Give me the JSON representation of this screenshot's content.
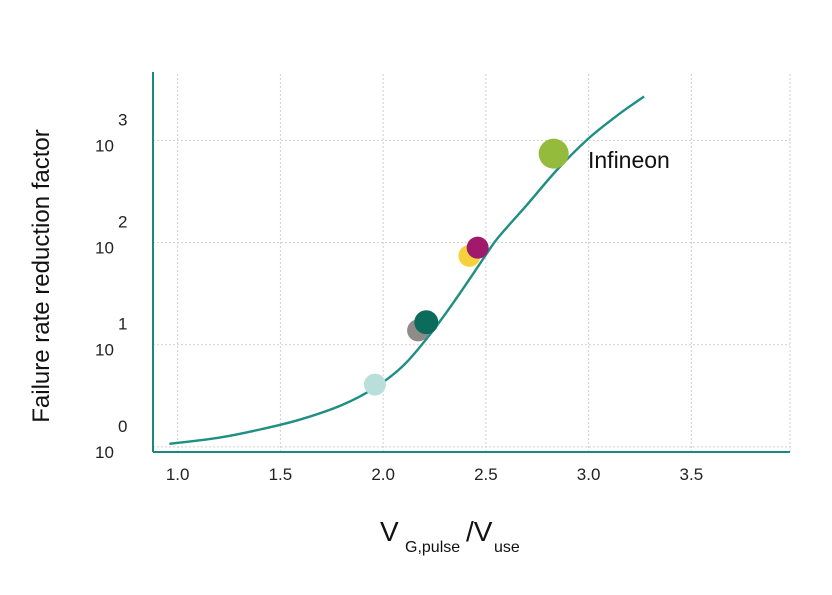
{
  "chart_data": {
    "type": "line",
    "xlabel": {
      "main": "V",
      "sub1": "G,pulse",
      "slash": "/V",
      "sub2": "use"
    },
    "ylabel": "Failure rate reduction factor",
    "xlim": [
      0.88,
      3.98
    ],
    "ylim_log10": [
      -0.05,
      3.65
    ],
    "y_scale": "log",
    "grid": true,
    "x_ticks": [
      {
        "value": 1.0,
        "label": "1.0"
      },
      {
        "value": 1.5,
        "label": "1.5"
      },
      {
        "value": 2.0,
        "label": "2.0"
      },
      {
        "value": 2.5,
        "label": "2.5"
      },
      {
        "value": 3.0,
        "label": "3.0"
      },
      {
        "value": 3.5,
        "label": "3.5"
      }
    ],
    "x_gridlines": [
      1.0,
      1.5,
      2.0,
      2.5,
      3.0,
      3.5,
      3.98
    ],
    "y_ticks": [
      {
        "exp_log10": 0,
        "base": "10",
        "exp": "0"
      },
      {
        "exp_log10": 1,
        "base": "10",
        "exp": "1"
      },
      {
        "exp_log10": 2,
        "base": "10",
        "exp": "2"
      },
      {
        "exp_log10": 3,
        "base": "10",
        "exp": "3"
      }
    ],
    "colors": {
      "axis": "#1a8a7e",
      "curve": "#1f8f83",
      "grid": "#cfcfcf"
    },
    "series": [
      {
        "values_log10": [
          [
            0.96,
            0.03
          ],
          [
            1.2,
            0.09
          ],
          [
            1.4,
            0.17
          ],
          [
            1.6,
            0.27
          ],
          [
            1.8,
            0.41
          ],
          [
            1.96,
            0.58
          ],
          [
            2.1,
            0.8
          ],
          [
            2.22,
            1.08
          ],
          [
            2.32,
            1.35
          ],
          [
            2.42,
            1.64
          ],
          [
            2.5,
            1.88
          ],
          [
            2.56,
            2.05
          ],
          [
            2.7,
            2.37
          ],
          [
            2.85,
            2.72
          ],
          [
            3.0,
            3.02
          ],
          [
            3.15,
            3.26
          ],
          [
            3.27,
            3.43
          ]
        ]
      }
    ],
    "points": [
      {
        "x": 1.96,
        "log10_y": 0.61,
        "color": "#b9dfdb",
        "r": 11
      },
      {
        "x": 2.17,
        "log10_y": 1.14,
        "color": "#8f8b88",
        "r": 11
      },
      {
        "x": 2.21,
        "log10_y": 1.22,
        "color": "#0b6b5c",
        "r": 12
      },
      {
        "x": 2.42,
        "log10_y": 1.87,
        "color": "#f5d23c",
        "r": 11
      },
      {
        "x": 2.46,
        "log10_y": 1.95,
        "color": "#a0196a",
        "r": 11
      },
      {
        "x": 2.83,
        "log10_y": 2.87,
        "color": "#94bb3c",
        "r": 15
      }
    ],
    "annotations": [
      {
        "text": "Infineon",
        "x": 3.0,
        "log10_y": 2.8
      }
    ]
  }
}
